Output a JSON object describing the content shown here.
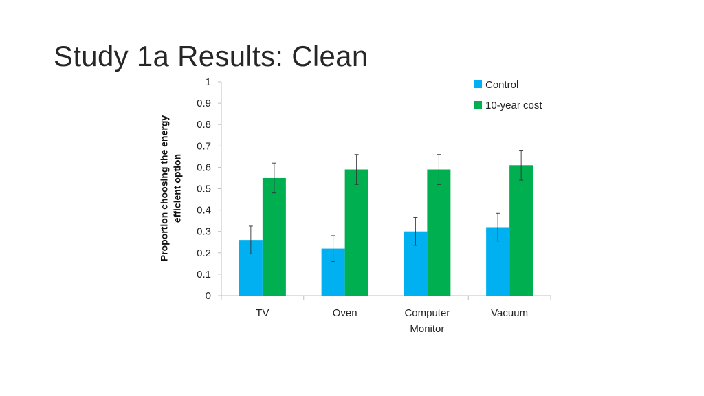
{
  "slide": {
    "title": "Study 1a Results: Clean"
  },
  "chart_data": {
    "type": "bar",
    "title": "",
    "xlabel": "",
    "ylabel_lines": [
      "Proportion choosing the energy",
      "efficient option"
    ],
    "ylim": [
      0,
      1
    ],
    "yticks": [
      "0",
      "0.1",
      "0.2",
      "0.3",
      "0.4",
      "0.5",
      "0.6",
      "0.7",
      "0.8",
      "0.9",
      "1"
    ],
    "categories": [
      [
        "TV"
      ],
      [
        "Oven"
      ],
      [
        "Computer",
        "Monitor"
      ],
      [
        "Vacuum"
      ]
    ],
    "series": [
      {
        "name": "Control",
        "color": "#00b0f0",
        "values": [
          0.26,
          0.22,
          0.3,
          0.32
        ],
        "errors": [
          0.065,
          0.06,
          0.065,
          0.065
        ]
      },
      {
        "name": "10-year cost",
        "color": "#00b050",
        "values": [
          0.55,
          0.59,
          0.59,
          0.61
        ],
        "errors": [
          0.07,
          0.07,
          0.07,
          0.07
        ]
      }
    ],
    "grid": false,
    "legend_position": "top-right"
  }
}
